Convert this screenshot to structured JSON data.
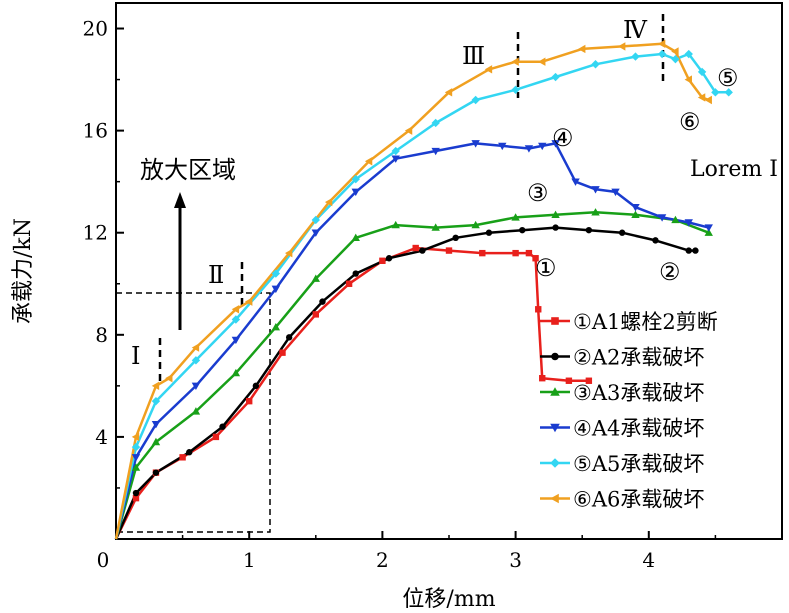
{
  "chart_data": {
    "type": "line",
    "xlabel": "位移/mm",
    "ylabel": "承载力/kN",
    "xlim": [
      0,
      5
    ],
    "ylim": [
      0,
      21
    ],
    "xticks": [
      "0",
      "1",
      "2",
      "3",
      "4"
    ],
    "yticks": [
      "4",
      "8",
      "12",
      "16",
      "20"
    ],
    "grid": false,
    "legend_position": "bottom-right",
    "series": [
      {
        "name": "①A1螺栓2剪断",
        "color": "#e8201c",
        "marker": "square",
        "x": [
          0,
          0.15,
          0.3,
          0.5,
          0.75,
          1.0,
          1.25,
          1.5,
          1.75,
          2.0,
          2.25,
          2.5,
          2.75,
          3.0,
          3.1,
          3.15,
          3.17,
          3.2,
          3.4,
          3.55
        ],
        "y": [
          0,
          1.6,
          2.6,
          3.2,
          4.0,
          5.4,
          7.3,
          8.8,
          10.0,
          10.9,
          11.4,
          11.3,
          11.2,
          11.2,
          11.2,
          11.0,
          9.0,
          6.3,
          6.2,
          6.2
        ]
      },
      {
        "name": "②A2承载破坏",
        "color": "#000000",
        "marker": "circle",
        "x": [
          0,
          0.15,
          0.3,
          0.55,
          0.8,
          1.05,
          1.3,
          1.55,
          1.8,
          2.05,
          2.3,
          2.55,
          2.8,
          3.05,
          3.3,
          3.55,
          3.8,
          4.05,
          4.3,
          4.35
        ],
        "y": [
          0,
          1.8,
          2.6,
          3.4,
          4.4,
          6.0,
          7.9,
          9.3,
          10.4,
          11.0,
          11.3,
          11.8,
          12.0,
          12.1,
          12.2,
          12.1,
          12.0,
          11.7,
          11.3,
          11.3
        ]
      },
      {
        "name": "③A3承载破坏",
        "color": "#18a018",
        "marker": "triangle-up",
        "x": [
          0,
          0.15,
          0.3,
          0.6,
          0.9,
          1.2,
          1.5,
          1.8,
          2.1,
          2.4,
          2.7,
          3.0,
          3.3,
          3.6,
          3.9,
          4.2,
          4.45
        ],
        "y": [
          0,
          2.8,
          3.8,
          5.0,
          6.5,
          8.3,
          10.2,
          11.8,
          12.3,
          12.2,
          12.3,
          12.6,
          12.7,
          12.8,
          12.7,
          12.5,
          12.0
        ]
      },
      {
        "name": "④A4承载破坏",
        "color": "#1a3ccf",
        "marker": "triangle-down",
        "x": [
          0,
          0.15,
          0.3,
          0.6,
          0.9,
          1.2,
          1.5,
          1.8,
          2.1,
          2.4,
          2.7,
          2.9,
          3.1,
          3.2,
          3.3,
          3.45,
          3.6,
          3.75,
          3.9,
          4.1,
          4.3,
          4.45
        ],
        "y": [
          0,
          3.2,
          4.5,
          6.0,
          7.8,
          9.8,
          12.0,
          13.6,
          14.9,
          15.2,
          15.5,
          15.4,
          15.3,
          15.4,
          15.5,
          14.0,
          13.7,
          13.6,
          13.0,
          12.6,
          12.4,
          12.2
        ]
      },
      {
        "name": "⑤A5承载破坏",
        "color": "#33d6f2",
        "marker": "diamond",
        "x": [
          0,
          0.15,
          0.3,
          0.6,
          0.9,
          1.2,
          1.5,
          1.8,
          2.1,
          2.4,
          2.7,
          3.0,
          3.3,
          3.6,
          3.9,
          4.1,
          4.2,
          4.3,
          4.4,
          4.5,
          4.6
        ],
        "y": [
          0,
          3.6,
          5.4,
          7.0,
          8.6,
          10.4,
          12.5,
          14.1,
          15.2,
          16.3,
          17.2,
          17.6,
          18.1,
          18.6,
          18.9,
          19.0,
          18.8,
          19.0,
          18.3,
          17.5,
          17.5
        ]
      },
      {
        "name": "⑥A6承载破坏",
        "color": "#f0a020",
        "marker": "triangle-left",
        "x": [
          0,
          0.15,
          0.3,
          0.4,
          0.6,
          0.9,
          1.0,
          1.3,
          1.6,
          1.9,
          2.2,
          2.5,
          2.8,
          3.0,
          3.2,
          3.5,
          3.8,
          4.1,
          4.2,
          4.3,
          4.4,
          4.45
        ],
        "y": [
          0,
          4.0,
          6.0,
          6.3,
          7.5,
          9.0,
          9.3,
          11.2,
          13.2,
          14.8,
          16.0,
          17.5,
          18.4,
          18.7,
          18.7,
          19.2,
          19.3,
          19.4,
          19.1,
          18.0,
          17.3,
          17.2
        ]
      }
    ],
    "annotations": {
      "region_label": "放大区域",
      "stage_1": "Ⅰ",
      "stage_2": "Ⅱ",
      "stage_3": "Ⅲ",
      "stage_4": "Ⅳ",
      "num_1": "①",
      "num_2": "②",
      "num_3": "③",
      "num_4": "④",
      "num_5": "⑤",
      "num_6": "⑥",
      "extra_text": "Lorem I"
    }
  }
}
